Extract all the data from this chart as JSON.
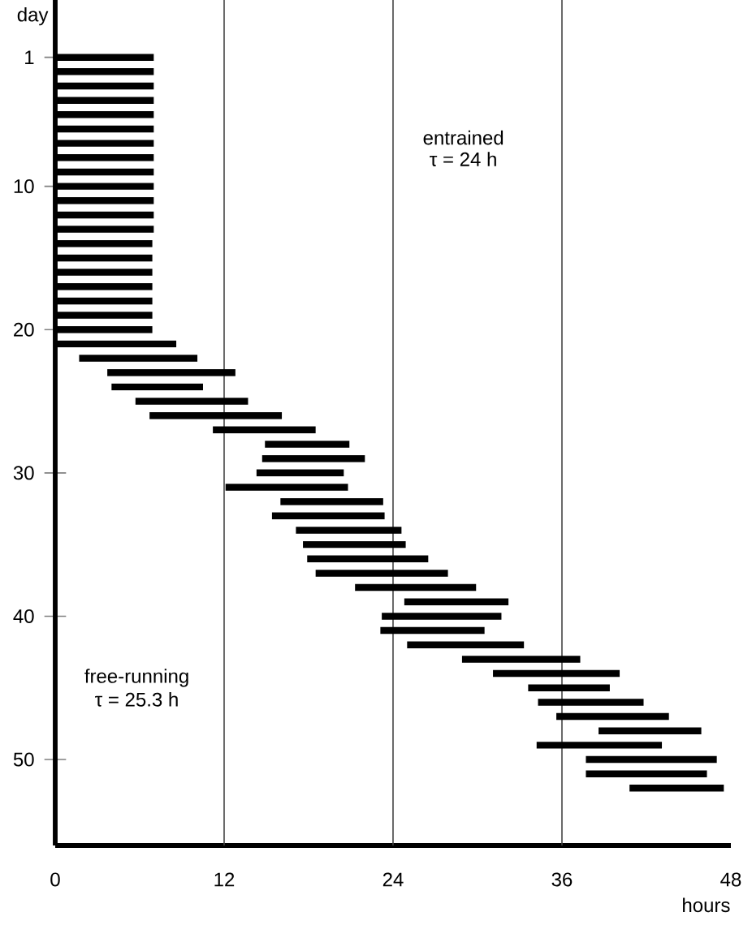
{
  "chart_data": {
    "type": "bar",
    "orientation": "horizontal",
    "xlabel": "hours",
    "ylabel": "day",
    "categories": [
      "1",
      null,
      null,
      null,
      null,
      null,
      null,
      null,
      null,
      "10",
      null,
      null,
      null,
      null,
      null,
      null,
      null,
      null,
      null,
      "20",
      null,
      null,
      null,
      null,
      null,
      null,
      null,
      null,
      null,
      "30",
      null,
      null,
      null,
      null,
      null,
      null,
      null,
      null,
      null,
      "40",
      null,
      null,
      null,
      null,
      null,
      null,
      null,
      null,
      null,
      "50",
      null,
      null
    ],
    "base": [
      0,
      0,
      0,
      0,
      0,
      0,
      0,
      0,
      0,
      0,
      0,
      0,
      0,
      0,
      0,
      0,
      0,
      0,
      0,
      0,
      0,
      1.7,
      3.7,
      4.0,
      5.7,
      6.7,
      11.2,
      14.9,
      14.7,
      14.3,
      12.1,
      16.0,
      15.4,
      17.1,
      17.6,
      17.9,
      18.5,
      21.3,
      24.8,
      23.2,
      23.1,
      25.0,
      28.9,
      31.1,
      33.6,
      34.3,
      35.6,
      38.6,
      34.2,
      37.7,
      37.7,
      40.8
    ],
    "values": [
      7.0,
      7.0,
      7.0,
      7.0,
      7.0,
      7.0,
      7.0,
      7.0,
      7.0,
      7.0,
      7.0,
      7.0,
      7.0,
      6.9,
      6.9,
      6.9,
      6.9,
      6.9,
      6.9,
      6.9,
      8.6,
      8.4,
      9.1,
      6.5,
      8.0,
      9.4,
      7.3,
      6.0,
      7.3,
      6.2,
      8.7,
      7.3,
      8.0,
      7.5,
      7.3,
      8.6,
      9.4,
      8.6,
      7.4,
      8.5,
      7.4,
      8.3,
      8.4,
      9.0,
      5.8,
      7.5,
      8.0,
      7.3,
      8.9,
      9.3,
      8.6,
      6.7
    ],
    "color": "#000000",
    "xlim": [
      0,
      48
    ],
    "xticks": [
      0,
      12,
      24,
      36,
      48
    ],
    "ref_lines": [
      {
        "axis": "x",
        "value": 12,
        "color": "#444444"
      },
      {
        "axis": "x",
        "value": 24,
        "color": "#444444"
      },
      {
        "axis": "x",
        "value": 36,
        "color": "#444444"
      }
    ],
    "annotations": [
      "entrained",
      "τ = 24 h",
      "free-running",
      "τ = 25.3 h"
    ],
    "grid": false
  }
}
